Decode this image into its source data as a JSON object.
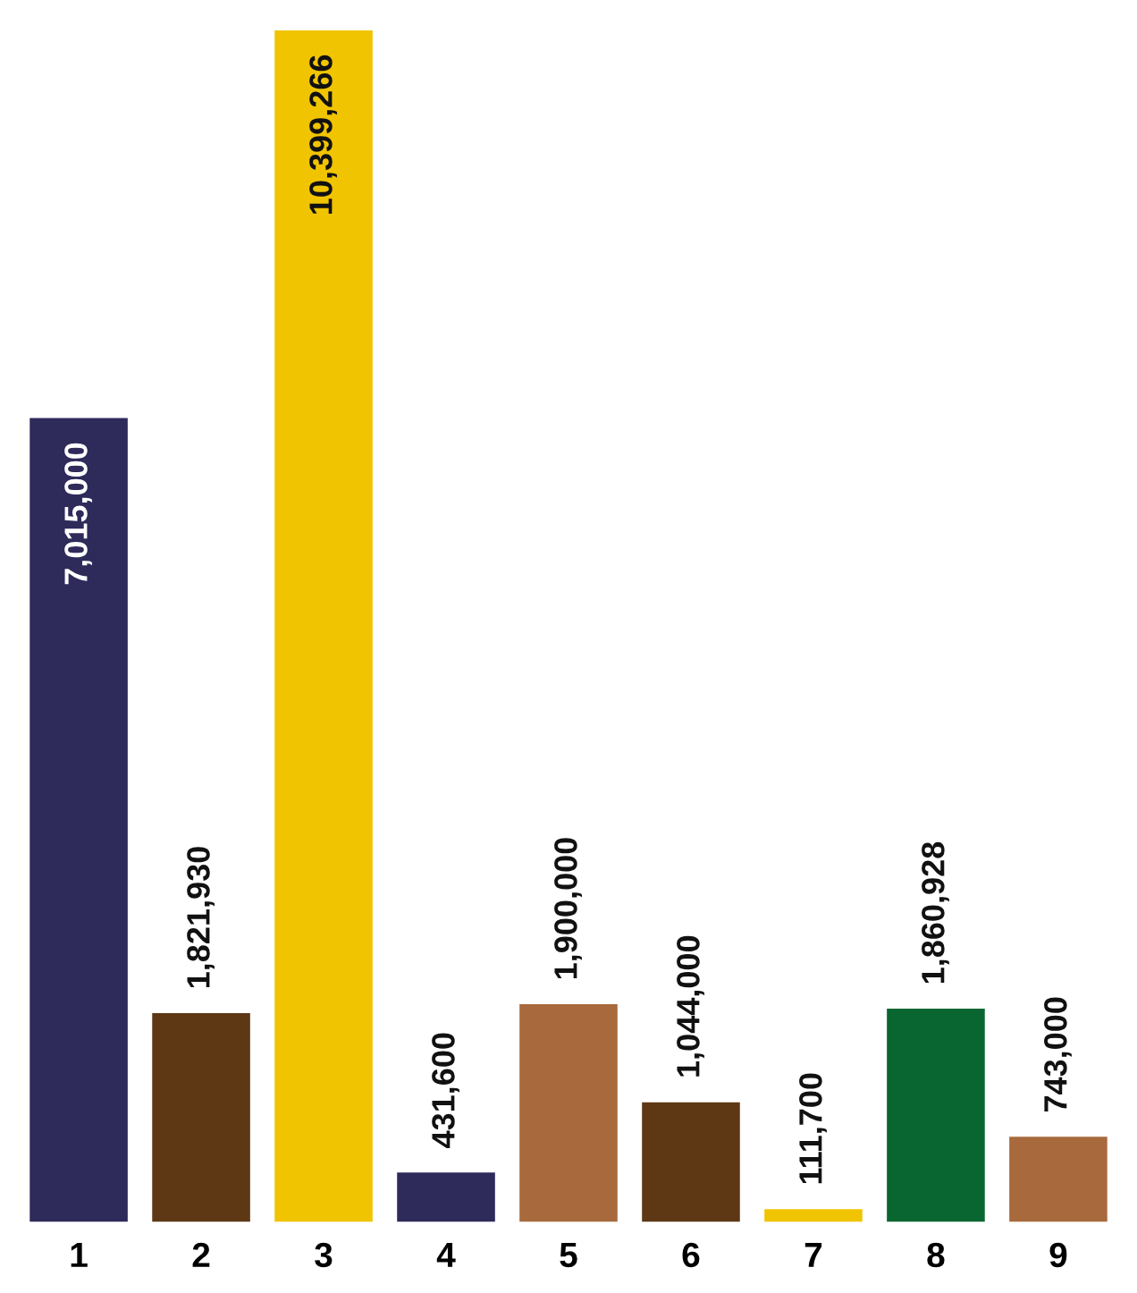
{
  "chart_data": {
    "type": "bar",
    "categories": [
      "1",
      "2",
      "3",
      "4",
      "5",
      "6",
      "7",
      "8",
      "9"
    ],
    "values": [
      7015000,
      1821930,
      10399266,
      431600,
      1900000,
      1044000,
      111700,
      1860928,
      743000
    ],
    "colors": [
      "#2e2a5a",
      "#5e3815",
      "#f0c400",
      "#2e2a5a",
      "#a86a3c",
      "#5e3815",
      "#f0c400",
      "#0a6630",
      "#a86a3c"
    ],
    "value_labels": [
      "7,015,000",
      "1,821,930",
      "10,399,266",
      "431,600",
      "1,900,000",
      "1,044,000",
      "111,700",
      "1,860,928",
      "743,000"
    ]
  }
}
